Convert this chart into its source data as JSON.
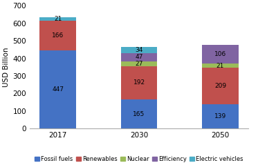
{
  "categories": [
    "2017",
    "2030",
    "2050"
  ],
  "series": {
    "Fossil fuels": [
      447,
      165,
      139
    ],
    "Renewables": [
      166,
      192,
      209
    ],
    "Nuclear": [
      0,
      27,
      21
    ],
    "Efficiency": [
      0,
      47,
      106
    ],
    "Electric vehicles": [
      21,
      34,
      0
    ]
  },
  "colors": {
    "Fossil fuels": "#4472C4",
    "Renewables": "#C0504D",
    "Nuclear": "#9BBB59",
    "Efficiency": "#8064A2",
    "Electric vehicles": "#4BACC6"
  },
  "ylabel": "USD Billion",
  "ylim": [
    0,
    700
  ],
  "yticks": [
    0,
    100,
    200,
    300,
    400,
    500,
    600,
    700
  ],
  "bar_width": 0.45,
  "legend_order": [
    "Fossil fuels",
    "Renewables",
    "Nuclear",
    "Efficiency",
    "Electric vehicles"
  ],
  "label_fontsize": 6.5,
  "axis_fontsize": 7.5,
  "legend_fontsize": 6
}
